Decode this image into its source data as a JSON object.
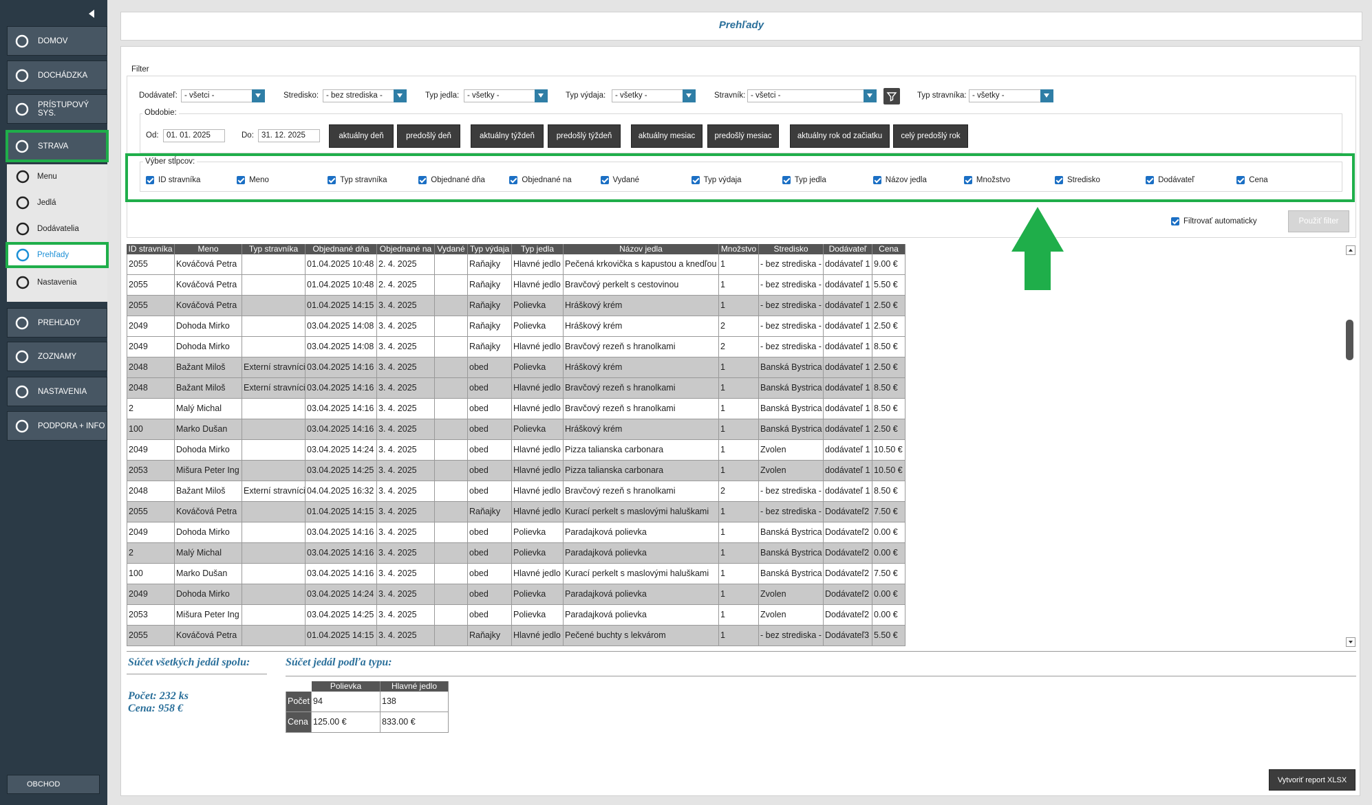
{
  "sidebar": {
    "main": [
      "DOMOV",
      "DOCHÁDZKA",
      "PRÍSTUPOVÝ SYS.",
      "STRAVA"
    ],
    "sub": [
      "Menu",
      "Jedlá",
      "Dodávatelia",
      "Prehľady",
      "Nastavenia"
    ],
    "sections": [
      "PREHĽADY",
      "ZOZNAMY",
      "NASTAVENIA",
      "PODPORA + INFO"
    ],
    "shop": "OBCHOD"
  },
  "header": {
    "title": "Prehľady"
  },
  "filter": {
    "legend": "Filter",
    "fields": [
      {
        "label": "Dodávateľ:",
        "value": "- všetci -"
      },
      {
        "label": "Stredisko:",
        "value": "- bez strediska -"
      },
      {
        "label": "Typ jedla:",
        "value": "- všetky -"
      },
      {
        "label": "Typ výdaja:",
        "value": "- všetky -"
      },
      {
        "label": "Stravník:",
        "value": "- všetci -"
      },
      {
        "label": "Typ stravníka:",
        "value": "- všetky -"
      }
    ],
    "period": {
      "legend": "Obdobie:",
      "from_label": "Od:",
      "from": "01. 01. 2025",
      "to_label": "Do:",
      "to": "31. 12. 2025",
      "buttons": [
        "aktuálny deň",
        "predošlý deň",
        "aktuálny týždeň",
        "predošlý týždeň",
        "aktuálny mesiac",
        "predošlý mesiac",
        "aktuálny rok od začiatku",
        "celý predošlý rok"
      ]
    },
    "columns": {
      "legend": "Výber stĺpcov:",
      "items": [
        "ID stravníka",
        "Meno",
        "Typ stravníka",
        "Objednané dňa",
        "Objednané na",
        "Vydané",
        "Typ výdaja",
        "Typ jedla",
        "Názov jedla",
        "Množstvo",
        "Stredisko",
        "Dodávateľ",
        "Cena"
      ]
    },
    "auto_filter": "Filtrovať automaticky",
    "apply": "Použiť filter"
  },
  "table": {
    "headers": [
      "ID stravníka",
      "Meno",
      "Typ stravníka",
      "Objednané dňa",
      "Objednané na",
      "Vydané",
      "Typ výdaja",
      "Typ jedla",
      "Názov jedla",
      "Množstvo",
      "Stredisko",
      "Dodávateľ",
      "Cena"
    ],
    "rows": [
      {
        "shaded": false,
        "cells": [
          2055,
          "Kováčová Petra",
          null,
          "01.04.2025 10:48",
          "2. 4. 2025",
          null,
          "Raňajky",
          "Hlavné jedlo",
          "Pečená krkovička s kapustou a knedľou",
          1,
          "- bez strediska -",
          "dodávateľ 1",
          "9.00 €"
        ]
      },
      {
        "shaded": false,
        "cells": [
          2055,
          "Kováčová Petra",
          null,
          "01.04.2025 10:48",
          "2. 4. 2025",
          null,
          "Raňajky",
          "Hlavné jedlo",
          "Bravčový perkelt s cestovinou",
          1,
          "- bez strediska -",
          "dodávateľ 1",
          "5.50 €"
        ]
      },
      {
        "shaded": true,
        "cells": [
          2055,
          "Kováčová Petra",
          null,
          "01.04.2025 14:15",
          "3. 4. 2025",
          null,
          "Raňajky",
          "Polievka",
          "Hráškový krém",
          1,
          "- bez strediska -",
          "dodávateľ 1",
          "2.50 €"
        ]
      },
      {
        "shaded": false,
        "cells": [
          2049,
          "Dohoda Mirko",
          null,
          "03.04.2025 14:08",
          "3. 4. 2025",
          null,
          "Raňajky",
          "Polievka",
          "Hráškový krém",
          2,
          "- bez strediska -",
          "dodávateľ 1",
          "2.50 €"
        ]
      },
      {
        "shaded": false,
        "cells": [
          2049,
          "Dohoda Mirko",
          null,
          "03.04.2025 14:08",
          "3. 4. 2025",
          null,
          "Raňajky",
          "Hlavné jedlo",
          "Bravčový rezeň s hranolkami",
          2,
          "- bez strediska -",
          "dodávateľ 1",
          "8.50 €"
        ]
      },
      {
        "shaded": true,
        "cells": [
          2048,
          "Bažant Miloš",
          "Externí stravníci",
          "03.04.2025 14:16",
          "3. 4. 2025",
          null,
          "obed",
          "Polievka",
          "Hráškový krém",
          1,
          "Banská Bystrica",
          "dodávateľ 1",
          "2.50 €"
        ]
      },
      {
        "shaded": true,
        "cells": [
          2048,
          "Bažant Miloš",
          "Externí stravníci",
          "03.04.2025 14:16",
          "3. 4. 2025",
          null,
          "obed",
          "Hlavné jedlo",
          "Bravčový rezeň s hranolkami",
          1,
          "Banská Bystrica",
          "dodávateľ 1",
          "8.50 €"
        ]
      },
      {
        "shaded": false,
        "cells": [
          2,
          "Malý Michal",
          null,
          "03.04.2025 14:16",
          "3. 4. 2025",
          null,
          "obed",
          "Hlavné jedlo",
          "Bravčový rezeň s hranolkami",
          1,
          "Banská Bystrica",
          "dodávateľ 1",
          "8.50 €"
        ]
      },
      {
        "shaded": true,
        "cells": [
          100,
          "Marko Dušan",
          null,
          "03.04.2025 14:16",
          "3. 4. 2025",
          null,
          "obed",
          "Polievka",
          "Hráškový krém",
          1,
          "Banská Bystrica",
          "dodávateľ 1",
          "2.50 €"
        ]
      },
      {
        "shaded": false,
        "cells": [
          2049,
          "Dohoda Mirko",
          null,
          "03.04.2025 14:24",
          "3. 4. 2025",
          null,
          "obed",
          "Hlavné jedlo",
          "Pizza talianska carbonara",
          1,
          "Zvolen",
          "dodávateľ 1",
          "10.50 €"
        ]
      },
      {
        "shaded": true,
        "cells": [
          2053,
          "Mišura Peter Ing",
          null,
          "03.04.2025 14:25",
          "3. 4. 2025",
          null,
          "obed",
          "Hlavné jedlo",
          "Pizza talianska carbonara",
          1,
          "Zvolen",
          "dodávateľ 1",
          "10.50 €"
        ]
      },
      {
        "shaded": false,
        "cells": [
          2048,
          "Bažant Miloš",
          "Externí stravníci",
          "04.04.2025 16:32",
          "3. 4. 2025",
          null,
          "obed",
          "Hlavné jedlo",
          "Bravčový rezeň s hranolkami",
          2,
          "- bez strediska -",
          "dodávateľ 1",
          "8.50 €"
        ]
      },
      {
        "shaded": true,
        "cells": [
          2055,
          "Kováčová Petra",
          null,
          "01.04.2025 14:15",
          "3. 4. 2025",
          null,
          "Raňajky",
          "Hlavné jedlo",
          "Kurací perkelt s maslovými haluškami",
          1,
          "- bez strediska -",
          "Dodávateľ2",
          "7.50 €"
        ]
      },
      {
        "shaded": false,
        "cells": [
          2049,
          "Dohoda Mirko",
          null,
          "03.04.2025 14:16",
          "3. 4. 2025",
          null,
          "obed",
          "Polievka",
          "Paradajková polievka",
          1,
          "Banská Bystrica",
          "Dodávateľ2",
          "0.00 €"
        ]
      },
      {
        "shaded": true,
        "cells": [
          2,
          "Malý Michal",
          null,
          "03.04.2025 14:16",
          "3. 4. 2025",
          null,
          "obed",
          "Polievka",
          "Paradajková polievka",
          1,
          "Banská Bystrica",
          "Dodávateľ2",
          "0.00 €"
        ]
      },
      {
        "shaded": false,
        "cells": [
          100,
          "Marko Dušan",
          null,
          "03.04.2025 14:16",
          "3. 4. 2025",
          null,
          "obed",
          "Hlavné jedlo",
          "Kurací perkelt s maslovými haluškami",
          1,
          "Banská Bystrica",
          "Dodávateľ2",
          "7.50 €"
        ]
      },
      {
        "shaded": true,
        "cells": [
          2049,
          "Dohoda Mirko",
          null,
          "03.04.2025 14:24",
          "3. 4. 2025",
          null,
          "obed",
          "Polievka",
          "Paradajková polievka",
          1,
          "Zvolen",
          "Dodávateľ2",
          "0.00 €"
        ]
      },
      {
        "shaded": false,
        "cells": [
          2053,
          "Mišura Peter Ing",
          null,
          "03.04.2025 14:25",
          "3. 4. 2025",
          null,
          "obed",
          "Polievka",
          "Paradajková polievka",
          1,
          "Zvolen",
          "Dodávateľ2",
          "0.00 €"
        ]
      },
      {
        "shaded": true,
        "cells": [
          2055,
          "Kováčová Petra",
          null,
          "01.04.2025 14:15",
          "3. 4. 2025",
          null,
          "Raňajky",
          "Hlavné jedlo",
          "Pečené buchty s lekvárom",
          1,
          "- bez strediska -",
          "Dodávateľ3",
          "5.50 €"
        ]
      }
    ]
  },
  "summary": {
    "total_title": "Súčet všetkých jedál spolu:",
    "count": "Počet: 232 ks",
    "price": "Cena: 958 €",
    "by_type_title": "Súčet jedál podľa typu:",
    "by_type": {
      "headers": [
        "Polievka",
        "Hlavné jedlo"
      ],
      "rows": [
        [
          "Počet",
          "94",
          "138"
        ],
        [
          "Cena",
          "125.00 €",
          "833.00 €"
        ]
      ]
    }
  },
  "export": "Vytvoriť report XLSX"
}
